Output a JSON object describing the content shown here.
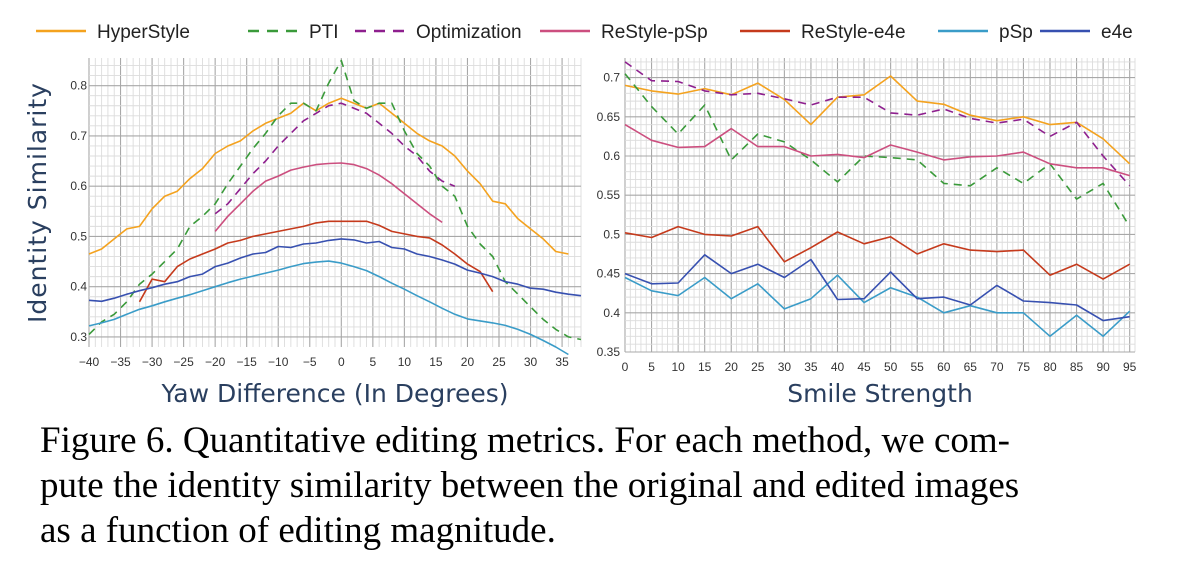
{
  "legend": [
    {
      "name": "HyperStyle",
      "color": "#f4a21e",
      "dash": "solid"
    },
    {
      "name": "PTI",
      "color": "#3a9a3a",
      "dash": "dash"
    },
    {
      "name": "Optimization",
      "color": "#8e1f8e",
      "dash": "dash"
    },
    {
      "name": "ReStyle-pSp",
      "color": "#cc4f7f",
      "dash": "solid"
    },
    {
      "name": "ReStyle-e4e",
      "color": "#c53a1c",
      "dash": "solid"
    },
    {
      "name": "pSp",
      "color": "#3a9cc8",
      "dash": "solid"
    },
    {
      "name": "e4e",
      "color": "#3750b0",
      "dash": "solid"
    }
  ],
  "chart_data": [
    {
      "type": "line",
      "title": "",
      "xlabel": "Yaw Difference (In Degrees)",
      "ylabel": "Identity Similarity",
      "xlim": [
        -40,
        38
      ],
      "ylim": [
        0.28,
        0.855
      ],
      "xticks": [
        -40,
        -35,
        -30,
        -25,
        -20,
        -15,
        -10,
        -5,
        0,
        5,
        10,
        15,
        20,
        25,
        30,
        35
      ],
      "yticks": [
        0.3,
        0.4,
        0.5,
        0.6,
        0.7,
        0.8
      ],
      "grid": true,
      "series": [
        {
          "name": "HyperStyle",
          "x": [
            -40,
            -38,
            -36,
            -34,
            -32,
            -30,
            -28,
            -26,
            -24,
            -22,
            -20,
            -18,
            -16,
            -14,
            -12,
            -10,
            -8,
            -6,
            -4,
            -2,
            0,
            2,
            4,
            6,
            8,
            10,
            12,
            14,
            16,
            18,
            20,
            22,
            24,
            26,
            28,
            30,
            32,
            34,
            36
          ],
          "values": [
            0.465,
            0.475,
            0.495,
            0.515,
            0.52,
            0.555,
            0.58,
            0.59,
            0.615,
            0.635,
            0.665,
            0.68,
            0.69,
            0.71,
            0.725,
            0.735,
            0.745,
            0.765,
            0.75,
            0.765,
            0.775,
            0.765,
            0.755,
            0.765,
            0.745,
            0.725,
            0.705,
            0.69,
            0.68,
            0.66,
            0.63,
            0.605,
            0.57,
            0.565,
            0.535,
            0.515,
            0.495,
            0.47,
            0.465
          ]
        },
        {
          "name": "PTI",
          "x": [
            -40,
            -38,
            -36,
            -34,
            -32,
            -30,
            -28,
            -26,
            -24,
            -22,
            -20,
            -18,
            -16,
            -14,
            -12,
            -10,
            -8,
            -6,
            -4,
            -2,
            0,
            2,
            4,
            6,
            8,
            10,
            12,
            14,
            16,
            18,
            20,
            22,
            24,
            26,
            28,
            30,
            32,
            34,
            36,
            38
          ],
          "values": [
            0.305,
            0.33,
            0.345,
            0.37,
            0.405,
            0.425,
            0.45,
            0.475,
            0.52,
            0.54,
            0.565,
            0.605,
            0.64,
            0.675,
            0.705,
            0.74,
            0.765,
            0.765,
            0.75,
            0.805,
            0.85,
            0.77,
            0.755,
            0.765,
            0.765,
            0.71,
            0.665,
            0.64,
            0.6,
            0.58,
            0.52,
            0.485,
            0.46,
            0.41,
            0.385,
            0.36,
            0.335,
            0.315,
            0.3,
            0.295
          ]
        },
        {
          "name": "Optimization",
          "x": [
            -20,
            -18,
            -16,
            -14,
            -12,
            -10,
            -8,
            -6,
            -4,
            -2,
            0,
            2,
            4,
            6,
            8,
            10,
            12,
            14,
            16,
            18
          ],
          "values": [
            0.545,
            0.565,
            0.595,
            0.625,
            0.65,
            0.68,
            0.705,
            0.73,
            0.745,
            0.76,
            0.765,
            0.755,
            0.745,
            0.725,
            0.705,
            0.68,
            0.66,
            0.63,
            0.61,
            0.6
          ]
        },
        {
          "name": "ReStyle-pSp",
          "x": [
            -20,
            -18,
            -16,
            -14,
            -12,
            -10,
            -8,
            -6,
            -4,
            -2,
            0,
            2,
            4,
            6,
            8,
            10,
            12,
            14,
            16
          ],
          "values": [
            0.51,
            0.54,
            0.565,
            0.59,
            0.61,
            0.62,
            0.632,
            0.638,
            0.643,
            0.645,
            0.646,
            0.643,
            0.635,
            0.622,
            0.605,
            0.585,
            0.565,
            0.545,
            0.528
          ]
        },
        {
          "name": "ReStyle-e4e",
          "x": [
            -32,
            -30,
            -28,
            -26,
            -24,
            -22,
            -20,
            -18,
            -16,
            -14,
            -12,
            -10,
            -8,
            -6,
            -4,
            -2,
            0,
            2,
            4,
            6,
            8,
            10,
            12,
            14,
            16,
            18,
            20,
            22,
            24
          ],
          "values": [
            0.37,
            0.415,
            0.41,
            0.44,
            0.455,
            0.465,
            0.475,
            0.487,
            0.492,
            0.5,
            0.505,
            0.51,
            0.515,
            0.52,
            0.527,
            0.53,
            0.53,
            0.53,
            0.53,
            0.522,
            0.51,
            0.505,
            0.5,
            0.497,
            0.483,
            0.465,
            0.445,
            0.43,
            0.39
          ]
        },
        {
          "name": "pSp",
          "x": [
            -40,
            -38,
            -36,
            -34,
            -32,
            -30,
            -28,
            -26,
            -24,
            -22,
            -20,
            -18,
            -16,
            -14,
            -12,
            -10,
            -8,
            -6,
            -4,
            -2,
            0,
            2,
            4,
            6,
            8,
            10,
            12,
            14,
            16,
            18,
            20,
            22,
            24,
            26,
            28,
            30,
            32,
            34,
            36
          ],
          "values": [
            0.322,
            0.328,
            0.335,
            0.345,
            0.355,
            0.362,
            0.37,
            0.377,
            0.384,
            0.392,
            0.4,
            0.408,
            0.415,
            0.421,
            0.427,
            0.433,
            0.44,
            0.446,
            0.449,
            0.451,
            0.447,
            0.44,
            0.432,
            0.42,
            0.407,
            0.395,
            0.382,
            0.37,
            0.357,
            0.345,
            0.336,
            0.332,
            0.328,
            0.323,
            0.315,
            0.305,
            0.293,
            0.28,
            0.265
          ]
        },
        {
          "name": "e4e",
          "x": [
            -40,
            -38,
            -36,
            -34,
            -32,
            -30,
            -28,
            -26,
            -24,
            -22,
            -20,
            -18,
            -16,
            -14,
            -12,
            -10,
            -8,
            -6,
            -4,
            -2,
            0,
            2,
            4,
            6,
            8,
            10,
            12,
            14,
            16,
            18,
            20,
            22,
            24,
            26,
            28,
            30,
            32,
            34,
            36,
            38
          ],
          "values": [
            0.373,
            0.371,
            0.377,
            0.385,
            0.392,
            0.398,
            0.405,
            0.41,
            0.42,
            0.425,
            0.44,
            0.447,
            0.457,
            0.465,
            0.468,
            0.48,
            0.478,
            0.485,
            0.487,
            0.492,
            0.495,
            0.493,
            0.487,
            0.49,
            0.478,
            0.475,
            0.465,
            0.46,
            0.453,
            0.445,
            0.433,
            0.427,
            0.42,
            0.41,
            0.405,
            0.397,
            0.395,
            0.389,
            0.385,
            0.382
          ]
        }
      ]
    },
    {
      "type": "line",
      "title": "",
      "xlabel": "Smile Strength",
      "ylabel": "",
      "xlim": [
        0,
        96
      ],
      "ylim": [
        0.35,
        0.725
      ],
      "xticks": [
        0,
        5,
        10,
        15,
        20,
        25,
        30,
        35,
        40,
        45,
        50,
        55,
        60,
        65,
        70,
        75,
        80,
        85,
        90,
        95
      ],
      "yticks": [
        0.35,
        0.4,
        0.45,
        0.5,
        0.55,
        0.6,
        0.65,
        0.7
      ],
      "grid": true,
      "series": [
        {
          "name": "HyperStyle",
          "x": [
            0,
            5,
            10,
            15,
            20,
            25,
            30,
            35,
            40,
            45,
            50,
            55,
            60,
            65,
            70,
            75,
            80,
            85,
            90,
            95
          ],
          "values": [
            0.69,
            0.683,
            0.679,
            0.686,
            0.678,
            0.693,
            0.672,
            0.64,
            0.675,
            0.678,
            0.702,
            0.67,
            0.666,
            0.652,
            0.645,
            0.65,
            0.64,
            0.643,
            0.622,
            0.59
          ]
        },
        {
          "name": "PTI",
          "x": [
            0,
            5,
            10,
            15,
            20,
            25,
            30,
            35,
            40,
            45,
            50,
            55,
            60,
            65,
            70,
            75,
            80,
            85,
            90,
            95
          ],
          "values": [
            0.705,
            0.663,
            0.628,
            0.665,
            0.595,
            0.628,
            0.618,
            0.595,
            0.567,
            0.6,
            0.598,
            0.595,
            0.565,
            0.562,
            0.585,
            0.565,
            0.59,
            0.545,
            0.565,
            0.51
          ]
        },
        {
          "name": "Optimization",
          "x": [
            0,
            5,
            10,
            15,
            20,
            25,
            30,
            35,
            40,
            45,
            50,
            55,
            60,
            65,
            70,
            75,
            80,
            85,
            90,
            95
          ],
          "values": [
            0.72,
            0.696,
            0.695,
            0.683,
            0.678,
            0.68,
            0.673,
            0.665,
            0.675,
            0.675,
            0.655,
            0.652,
            0.66,
            0.648,
            0.642,
            0.647,
            0.625,
            0.643,
            0.6,
            0.562
          ]
        },
        {
          "name": "ReStyle-pSp",
          "x": [
            0,
            5,
            10,
            15,
            20,
            25,
            30,
            35,
            40,
            45,
            50,
            55,
            60,
            65,
            70,
            75,
            80,
            85,
            90,
            95
          ],
          "values": [
            0.64,
            0.62,
            0.611,
            0.612,
            0.635,
            0.612,
            0.612,
            0.6,
            0.602,
            0.598,
            0.614,
            0.605,
            0.595,
            0.599,
            0.6,
            0.605,
            0.59,
            0.585,
            0.585,
            0.575
          ]
        },
        {
          "name": "ReStyle-e4e",
          "x": [
            0,
            5,
            10,
            15,
            20,
            25,
            30,
            35,
            40,
            45,
            50,
            55,
            60,
            65,
            70,
            75,
            80,
            85,
            90,
            95
          ],
          "values": [
            0.502,
            0.496,
            0.51,
            0.5,
            0.498,
            0.51,
            0.465,
            0.483,
            0.503,
            0.488,
            0.497,
            0.475,
            0.488,
            0.48,
            0.478,
            0.48,
            0.448,
            0.462,
            0.443,
            0.462
          ]
        },
        {
          "name": "pSp",
          "x": [
            0,
            5,
            10,
            15,
            20,
            25,
            30,
            35,
            40,
            45,
            50,
            55,
            60,
            65,
            70,
            75,
            80,
            85,
            90,
            95
          ],
          "values": [
            0.445,
            0.428,
            0.422,
            0.445,
            0.418,
            0.437,
            0.405,
            0.418,
            0.448,
            0.413,
            0.432,
            0.42,
            0.4,
            0.409,
            0.4,
            0.4,
            0.37,
            0.397,
            0.37,
            0.402
          ]
        },
        {
          "name": "e4e",
          "x": [
            0,
            5,
            10,
            15,
            20,
            25,
            30,
            35,
            40,
            45,
            50,
            55,
            60,
            65,
            70,
            75,
            80,
            85,
            90,
            95
          ],
          "values": [
            0.45,
            0.437,
            0.438,
            0.474,
            0.45,
            0.462,
            0.445,
            0.468,
            0.417,
            0.418,
            0.452,
            0.418,
            0.42,
            0.41,
            0.435,
            0.415,
            0.413,
            0.41,
            0.39,
            0.395
          ]
        }
      ]
    }
  ],
  "caption": [
    "Figure 6. Quantitative editing metrics. For each method, we com-",
    "pute the identity similarity between the original and edited images",
    "as a function of editing magnitude."
  ]
}
